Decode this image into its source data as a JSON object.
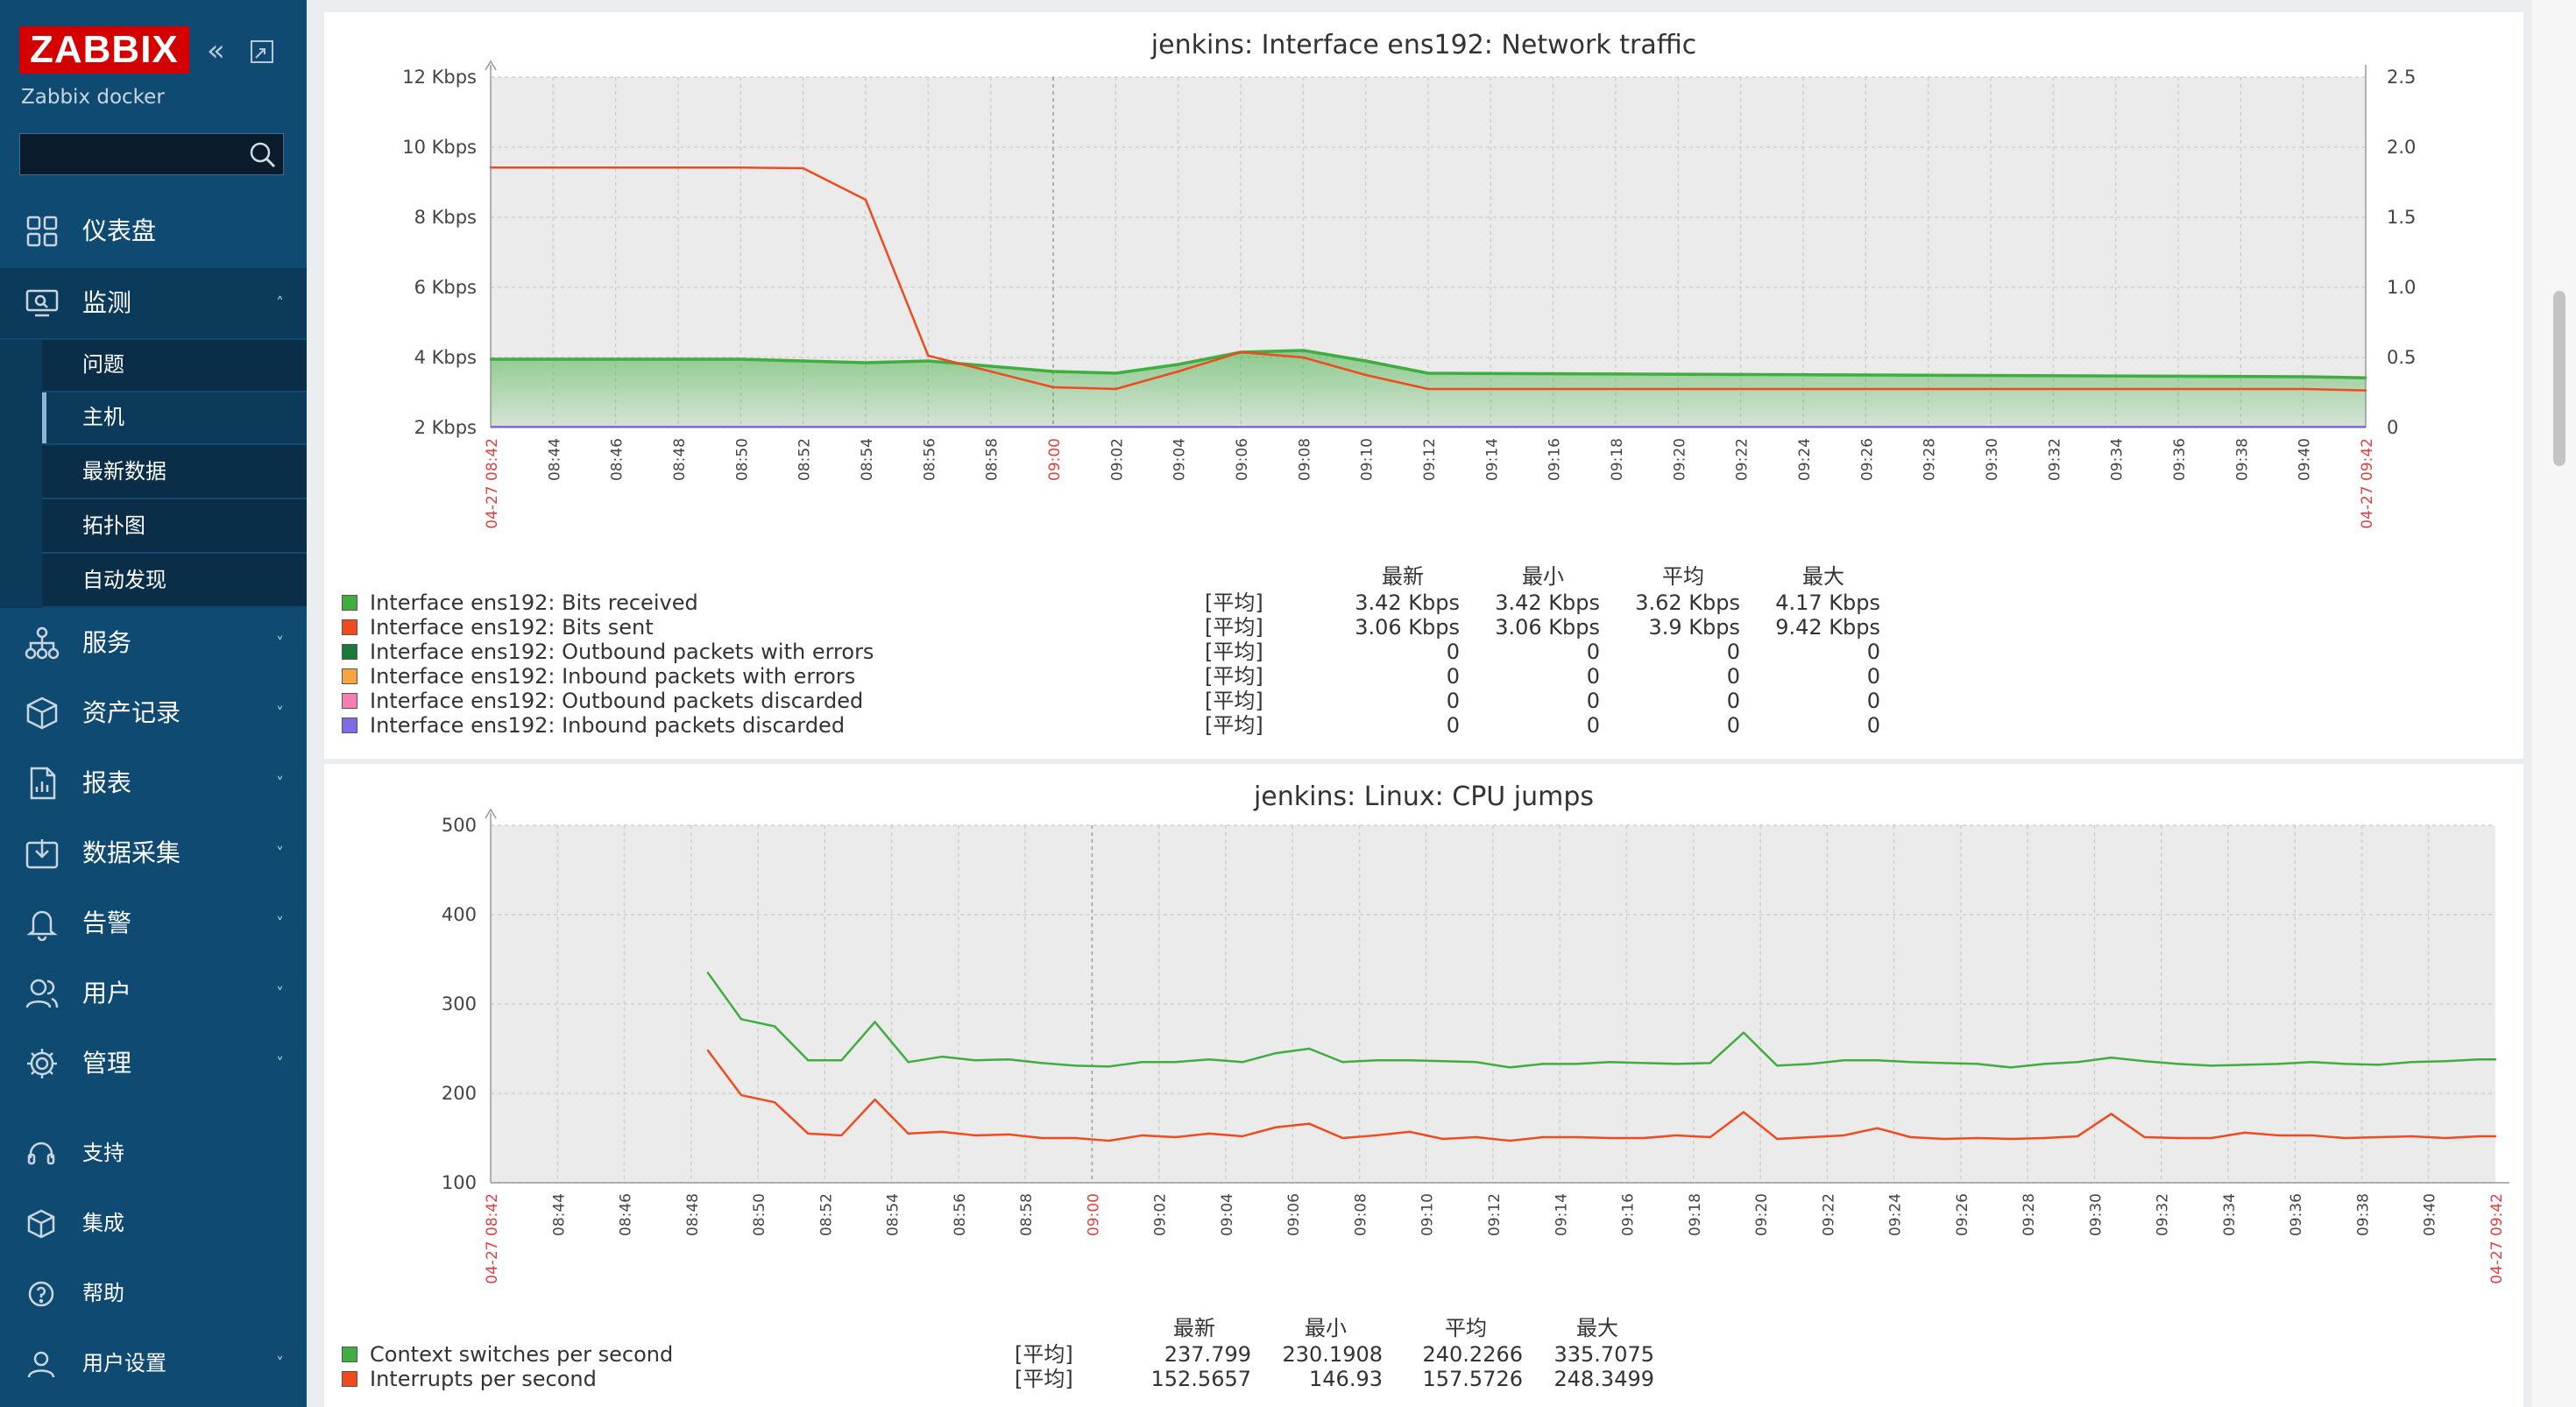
{
  "sidebar": {
    "logo": "ZABBIX",
    "server_name": "Zabbix docker",
    "search_placeholder": "",
    "nav": [
      {
        "label": "仪表盘",
        "icon": "dashboard-icon"
      },
      {
        "label": "监测",
        "icon": "monitoring-icon"
      },
      {
        "label": "服务",
        "icon": "services-icon"
      },
      {
        "label": "资产记录",
        "icon": "inventory-icon"
      },
      {
        "label": "报表",
        "icon": "reports-icon"
      },
      {
        "label": "数据采集",
        "icon": "data-collection-icon"
      },
      {
        "label": "告警",
        "icon": "alerts-icon"
      },
      {
        "label": "用户",
        "icon": "users-icon"
      },
      {
        "label": "管理",
        "icon": "administration-icon"
      }
    ],
    "monitoring_sub": [
      {
        "label": "问题"
      },
      {
        "label": "主机",
        "selected": true
      },
      {
        "label": "最新数据"
      },
      {
        "label": "拓扑图"
      },
      {
        "label": "自动发现"
      }
    ],
    "footer": [
      {
        "label": "支持",
        "icon": "support-icon"
      },
      {
        "label": "集成",
        "icon": "integrations-icon"
      },
      {
        "label": "帮助",
        "icon": "help-icon"
      },
      {
        "label": "用户设置",
        "icon": "user-settings-icon"
      }
    ]
  },
  "colors": {
    "sidebar_bg": "#0f4a73",
    "logo_red": "#d40000",
    "series_green": "#3fad3f",
    "series_red": "#f04a20",
    "dark_green": "#1a7a3a",
    "orange": "#f7a540",
    "pink": "#f57fb0",
    "purple": "#7f6be6"
  },
  "legend_headers": {
    "last": "最新",
    "min": "最小",
    "avg": "平均",
    "max": "最大"
  },
  "chart_data": [
    {
      "type": "line",
      "title": "jenkins: Interface ens192: Network traffic",
      "x_start_label": "04-27 08:42",
      "x_end_label": "04-27 09:42",
      "x_ticks": [
        "08:44",
        "08:46",
        "08:48",
        "08:50",
        "08:52",
        "08:54",
        "08:56",
        "08:58",
        "09:00",
        "09:02",
        "09:04",
        "09:06",
        "09:08",
        "09:10",
        "09:12",
        "09:14",
        "09:16",
        "09:18",
        "09:20",
        "09:22",
        "09:24",
        "09:26",
        "09:28",
        "09:30",
        "09:32",
        "09:34",
        "09:36",
        "09:38",
        "09:40"
      ],
      "y_ticks": [
        "2 Kbps",
        "4 Kbps",
        "6 Kbps",
        "8 Kbps",
        "10 Kbps",
        "12 Kbps"
      ],
      "y2_ticks": [
        "0",
        "0.5",
        "1.0",
        "1.5",
        "2.0",
        "2.5"
      ],
      "ylim_kbps": [
        2,
        12
      ],
      "y2lim": [
        0,
        2.5
      ],
      "series": [
        {
          "name": "Interface ens192: Bits received",
          "color": "#3fad3f",
          "fill": true,
          "x": [
            "08:42",
            "08:50",
            "08:52",
            "08:54",
            "08:56",
            "08:58",
            "09:00",
            "09:02",
            "09:04",
            "09:06",
            "09:08",
            "09:10",
            "09:12",
            "09:40",
            "09:42"
          ],
          "y": [
            3.95,
            3.95,
            3.9,
            3.85,
            3.9,
            3.75,
            3.6,
            3.55,
            3.8,
            4.15,
            4.2,
            3.9,
            3.55,
            3.45,
            3.42
          ]
        },
        {
          "name": "Interface ens192: Bits sent",
          "color": "#f04a20",
          "x": [
            "08:42",
            "08:50",
            "08:52",
            "08:54",
            "08:56",
            "08:58",
            "09:00",
            "09:02",
            "09:04",
            "09:06",
            "09:08",
            "09:10",
            "09:12",
            "09:40",
            "09:42"
          ],
          "y": [
            9.42,
            9.42,
            9.4,
            8.5,
            4.05,
            3.6,
            3.15,
            3.1,
            3.6,
            4.15,
            4.0,
            3.5,
            3.1,
            3.1,
            3.06
          ]
        },
        {
          "name": "Interface ens192: Outbound packets with errors",
          "color": "#1a7a3a"
        },
        {
          "name": "Interface ens192: Inbound packets with errors",
          "color": "#f7a540"
        },
        {
          "name": "Interface ens192: Outbound packets discarded",
          "color": "#f57fb0"
        },
        {
          "name": "Interface ens192: Inbound packets discarded",
          "color": "#7f6be6"
        }
      ],
      "legend": [
        {
          "fn": "[平均]",
          "last": "3.42 Kbps",
          "min": "3.42 Kbps",
          "avg": "3.62 Kbps",
          "max": "4.17 Kbps"
        },
        {
          "fn": "[平均]",
          "last": "3.06 Kbps",
          "min": "3.06 Kbps",
          "avg": "3.9 Kbps",
          "max": "9.42 Kbps"
        },
        {
          "fn": "[平均]",
          "last": "0",
          "min": "0",
          "avg": "0",
          "max": "0"
        },
        {
          "fn": "[平均]",
          "last": "0",
          "min": "0",
          "avg": "0",
          "max": "0"
        },
        {
          "fn": "[平均]",
          "last": "0",
          "min": "0",
          "avg": "0",
          "max": "0"
        },
        {
          "fn": "[平均]",
          "last": "0",
          "min": "0",
          "avg": "0",
          "max": "0"
        }
      ]
    },
    {
      "type": "line",
      "title": "jenkins: Linux: CPU jumps",
      "x_start_label": "04-27 08:42",
      "x_end_label": "04-27 09:42",
      "x_ticks": [
        "08:44",
        "08:46",
        "08:48",
        "08:50",
        "08:52",
        "08:54",
        "08:56",
        "08:58",
        "09:00",
        "09:02",
        "09:04",
        "09:06",
        "09:08",
        "09:10",
        "09:12",
        "09:14",
        "09:16",
        "09:18",
        "09:20",
        "09:22",
        "09:24",
        "09:26",
        "09:28",
        "09:30",
        "09:32",
        "09:34",
        "09:36",
        "09:38",
        "09:40"
      ],
      "y_ticks": [
        "100",
        "200",
        "300",
        "400",
        "500"
      ],
      "ylim": [
        100,
        500
      ],
      "series": [
        {
          "name": "Context switches per second",
          "color": "#3fad3f",
          "x": [
            "08:48:30",
            "08:49:30",
            "08:50:30",
            "08:51:30",
            "08:52:30",
            "08:53:30",
            "08:54:30",
            "08:55:30",
            "08:56:30",
            "08:57:30",
            "08:58:30",
            "08:59:30",
            "09:00:30",
            "09:01:30",
            "09:02:30",
            "09:03:30",
            "09:04:30",
            "09:05:30",
            "09:06:30",
            "09:07:30",
            "09:08:30",
            "09:09:30",
            "09:10:30",
            "09:11:30",
            "09:12:30",
            "09:13:30",
            "09:14:30",
            "09:15:30",
            "09:16:30",
            "09:17:30",
            "09:18:30",
            "09:19:30",
            "09:20:30",
            "09:21:30",
            "09:22:30",
            "09:23:30",
            "09:24:30",
            "09:25:30",
            "09:26:30",
            "09:27:30",
            "09:28:30",
            "09:29:30",
            "09:30:30",
            "09:31:30",
            "09:32:30",
            "09:33:30",
            "09:34:30",
            "09:35:30",
            "09:36:30",
            "09:37:30",
            "09:38:30",
            "09:39:30",
            "09:40:30",
            "09:41:30",
            "09:42:00"
          ],
          "y": [
            335,
            283,
            275,
            237,
            237,
            280,
            235,
            241,
            237,
            238,
            234,
            231,
            230,
            235,
            235,
            238,
            235,
            245,
            250,
            235,
            237,
            237,
            236,
            235,
            229,
            233,
            233,
            235,
            234,
            233,
            234,
            268,
            231,
            233,
            237,
            237,
            235,
            234,
            233,
            229,
            233,
            235,
            240,
            236,
            233,
            231,
            232,
            233,
            235,
            233,
            232,
            235,
            236,
            238,
            238
          ]
        },
        {
          "name": "Interrupts per second",
          "color": "#f04a20",
          "x": [
            "08:48:30",
            "08:49:30",
            "08:50:30",
            "08:51:30",
            "08:52:30",
            "08:53:30",
            "08:54:30",
            "08:55:30",
            "08:56:30",
            "08:57:30",
            "08:58:30",
            "08:59:30",
            "09:00:30",
            "09:01:30",
            "09:02:30",
            "09:03:30",
            "09:04:30",
            "09:05:30",
            "09:06:30",
            "09:07:30",
            "09:08:30",
            "09:09:30",
            "09:10:30",
            "09:11:30",
            "09:12:30",
            "09:13:30",
            "09:14:30",
            "09:15:30",
            "09:16:30",
            "09:17:30",
            "09:18:30",
            "09:19:30",
            "09:20:30",
            "09:21:30",
            "09:22:30",
            "09:23:30",
            "09:24:30",
            "09:25:30",
            "09:26:30",
            "09:27:30",
            "09:28:30",
            "09:29:30",
            "09:30:30",
            "09:31:30",
            "09:32:30",
            "09:33:30",
            "09:34:30",
            "09:35:30",
            "09:36:30",
            "09:37:30",
            "09:38:30",
            "09:39:30",
            "09:40:30",
            "09:41:30",
            "09:42:00"
          ],
          "y": [
            248,
            198,
            190,
            155,
            153,
            193,
            155,
            157,
            153,
            154,
            150,
            150,
            147,
            153,
            151,
            155,
            152,
            162,
            166,
            150,
            153,
            157,
            149,
            151,
            147,
            151,
            151,
            150,
            150,
            153,
            151,
            179,
            149,
            151,
            153,
            161,
            151,
            149,
            150,
            149,
            150,
            152,
            177,
            151,
            150,
            150,
            156,
            153,
            153,
            150,
            151,
            152,
            150,
            152,
            152
          ]
        }
      ],
      "legend": [
        {
          "fn": "[平均]",
          "last": "237.799",
          "min": "230.1908",
          "avg": "240.2266",
          "max": "335.7075"
        },
        {
          "fn": "[平均]",
          "last": "152.5657",
          "min": "146.93",
          "avg": "157.5726",
          "max": "248.3499"
        }
      ]
    }
  ]
}
